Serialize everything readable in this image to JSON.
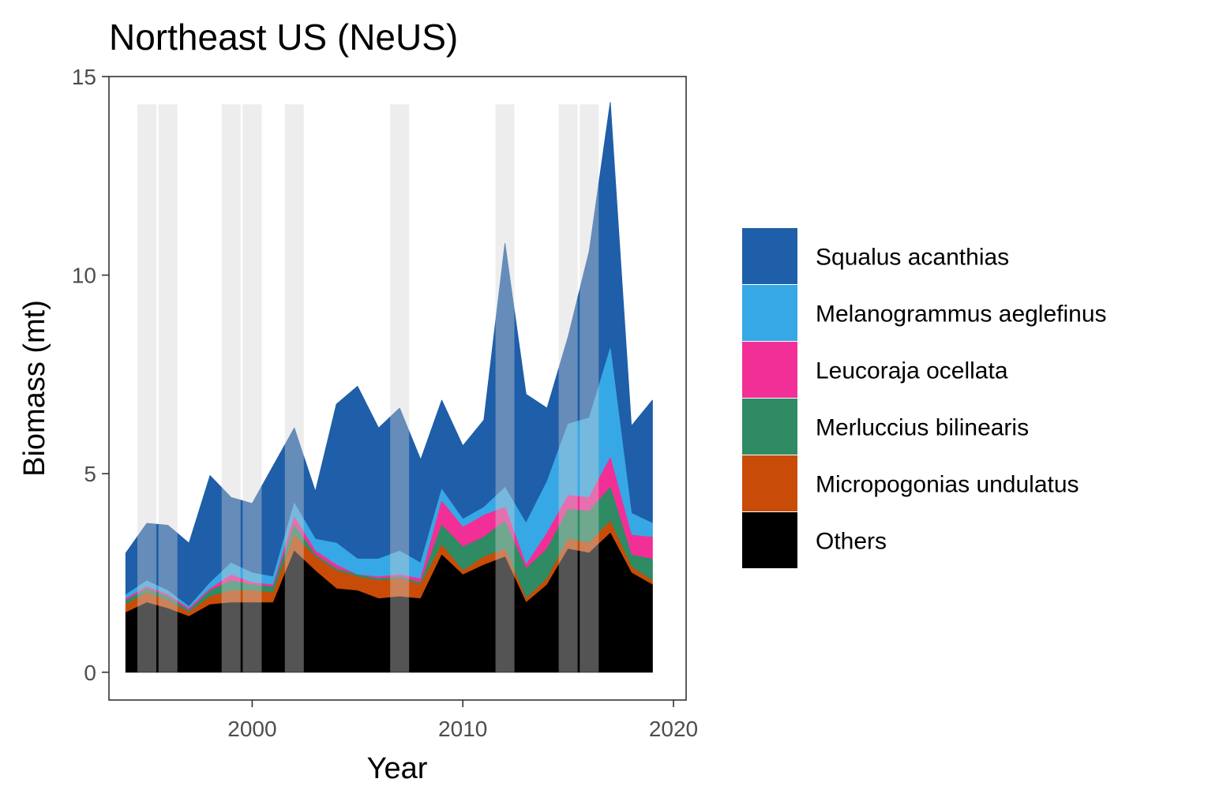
{
  "chart_data": {
    "type": "area",
    "stacked": true,
    "title": "Northeast US (NeUS)",
    "xlabel": "Year",
    "ylabel": "Biomass (mt)",
    "xlim": [
      1993.2,
      2020.6
    ],
    "ylim": [
      -0.7,
      15
    ],
    "x_ticks": [
      2000,
      2010,
      2020
    ],
    "y_ticks": [
      0,
      5,
      10,
      15
    ],
    "grid": false,
    "legend_position": "right",
    "x": [
      1994,
      1995,
      1996,
      1997,
      1998,
      1999,
      2000,
      2001,
      2002,
      2003,
      2004,
      2005,
      2006,
      2007,
      2008,
      2009,
      2010,
      2011,
      2012,
      2013,
      2014,
      2015,
      2016,
      2017,
      2018,
      2019
    ],
    "series": [
      {
        "name": "Others",
        "color": "#000000",
        "values": [
          1.5,
          1.75,
          1.6,
          1.4,
          1.7,
          1.75,
          1.75,
          1.75,
          3.05,
          2.55,
          2.1,
          2.05,
          1.85,
          1.9,
          1.85,
          2.95,
          2.45,
          2.7,
          2.9,
          1.75,
          2.2,
          3.1,
          3.0,
          3.5,
          2.5,
          2.2
        ]
      },
      {
        "name": "Micropogonias undulatus",
        "color": "#c84c07",
        "values": [
          0.2,
          0.25,
          0.2,
          0.1,
          0.2,
          0.3,
          0.3,
          0.25,
          0.4,
          0.35,
          0.45,
          0.35,
          0.45,
          0.45,
          0.35,
          0.25,
          0.1,
          0.2,
          0.2,
          0.1,
          0.15,
          0.25,
          0.25,
          0.3,
          0.15,
          0.1
        ]
      },
      {
        "name": "Merluccius bilinearis",
        "color": "#2e8b63",
        "values": [
          0.1,
          0.1,
          0.1,
          0.05,
          0.15,
          0.25,
          0.15,
          0.15,
          0.25,
          0.05,
          0.05,
          0.05,
          0.05,
          0.05,
          0.05,
          0.5,
          0.6,
          0.5,
          0.7,
          0.75,
          0.75,
          0.75,
          0.8,
          0.85,
          0.3,
          0.55
        ]
      },
      {
        "name": "Leucoraja ocellata",
        "color": "#f22f96",
        "values": [
          0.05,
          0.05,
          0.05,
          0.05,
          0.05,
          0.15,
          0.05,
          0.05,
          0.2,
          0.1,
          0.1,
          0.0,
          0.05,
          0.05,
          0.1,
          0.6,
          0.5,
          0.55,
          0.35,
          0.1,
          0.4,
          0.35,
          0.35,
          0.75,
          0.5,
          0.55
        ]
      },
      {
        "name": "Melanogrammus aeglefinus",
        "color": "#37a8e6",
        "values": [
          0.1,
          0.15,
          0.1,
          0.05,
          0.15,
          0.3,
          0.25,
          0.2,
          0.35,
          0.3,
          0.55,
          0.4,
          0.45,
          0.6,
          0.4,
          0.3,
          0.2,
          0.2,
          0.5,
          1.05,
          1.3,
          1.8,
          2.0,
          2.75,
          0.55,
          0.35
        ]
      },
      {
        "name": "Squalus acanthias",
        "color": "#1f5ea8",
        "values": [
          1.05,
          1.45,
          1.65,
          1.6,
          2.7,
          1.65,
          1.75,
          2.8,
          1.9,
          1.2,
          3.5,
          4.35,
          3.3,
          3.6,
          2.6,
          2.25,
          1.85,
          2.2,
          6.15,
          3.25,
          1.85,
          2.2,
          4.2,
          6.2,
          2.2,
          3.1
        ]
      }
    ],
    "legend_order": [
      "Squalus acanthias",
      "Melanogrammus aeglefinus",
      "Leucoraja ocellata",
      "Merluccius bilinearis",
      "Micropogonias undulatus",
      "Others"
    ],
    "highlight_years": [
      1995,
      1996,
      1999,
      2000,
      2002,
      2007,
      2012,
      2015,
      2016
    ],
    "highlight_top": 14.3,
    "highlight_color": "#d3d3d3"
  }
}
